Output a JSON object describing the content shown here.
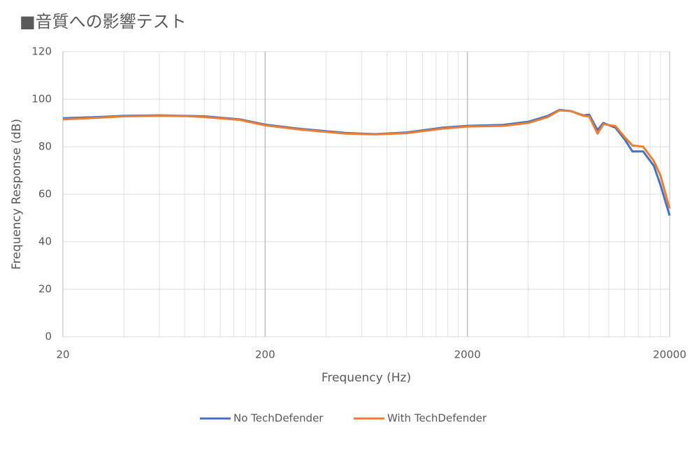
{
  "chart_data": {
    "type": "line",
    "title": "■音質への影響テスト",
    "x_label": "Frequency (Hz)",
    "y_label": "Frequency Response (dB)",
    "x": [
      20,
      30,
      40,
      60,
      80,
      100,
      150,
      200,
      300,
      500,
      700,
      1000,
      1500,
      2000,
      3000,
      4000,
      5000,
      5700,
      6500,
      7500,
      8000,
      8800,
      9400,
      10800,
      12000,
      13100,
      14800,
      16700,
      18000,
      20000
    ],
    "series": [
      {
        "name": "No TechDefender",
        "color": "#4472c4",
        "values": [
          92,
          92.5,
          93,
          93.2,
          93,
          92.8,
          91.5,
          89.3,
          87.5,
          85.8,
          85.3,
          86,
          88,
          88.8,
          89.2,
          90.5,
          93,
          95.5,
          95,
          93.2,
          93.5,
          87,
          90,
          88,
          83,
          78,
          78,
          72,
          64,
          51
        ]
      },
      {
        "name": "With TechDefender",
        "color": "#ed7d31",
        "values": [
          91.5,
          92.2,
          92.8,
          93,
          92.9,
          92.5,
          91.3,
          89,
          87.2,
          85.5,
          85.2,
          85.7,
          87.6,
          88.5,
          88.8,
          90,
          92.5,
          95.3,
          95,
          93,
          92.8,
          85.5,
          89.5,
          88.7,
          84,
          80.5,
          80,
          74,
          68,
          54
        ]
      }
    ],
    "xlim": [
      20,
      20000
    ],
    "xticks": [
      20,
      200,
      2000,
      20000
    ],
    "x_log": true,
    "ylim": [
      0,
      120
    ],
    "yticks": [
      0,
      20,
      40,
      60,
      80,
      100,
      120
    ],
    "grid": true,
    "legend": "bottom"
  }
}
